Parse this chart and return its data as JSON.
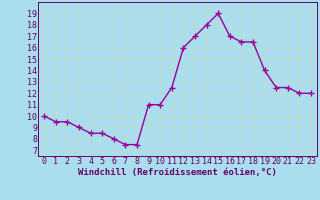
{
  "x": [
    0,
    1,
    2,
    3,
    4,
    5,
    6,
    7,
    8,
    9,
    10,
    11,
    12,
    13,
    14,
    15,
    16,
    17,
    18,
    19,
    20,
    21,
    22,
    23
  ],
  "y": [
    10.0,
    9.5,
    9.5,
    9.0,
    8.5,
    8.5,
    8.0,
    7.5,
    7.5,
    11.0,
    11.0,
    12.5,
    16.0,
    17.0,
    18.0,
    19.0,
    17.0,
    16.5,
    16.5,
    14.0,
    12.5,
    12.5,
    12.0,
    12.0
  ],
  "line_color": "#990099",
  "marker": "+",
  "marker_size": 4,
  "marker_lw": 1.0,
  "line_width": 1.0,
  "xlabel": "Windchill (Refroidissement éolien,°C)",
  "xlabel_fontsize": 6.5,
  "tick_fontsize": 6.0,
  "ylabel_ticks": [
    7,
    8,
    9,
    10,
    11,
    12,
    13,
    14,
    15,
    16,
    17,
    18,
    19
  ],
  "xtick_labels": [
    "0",
    "1",
    "2",
    "3",
    "4",
    "5",
    "6",
    "7",
    "8",
    "9",
    "10",
    "11",
    "12",
    "13",
    "14",
    "15",
    "16",
    "17",
    "18",
    "19",
    "20",
    "21",
    "22",
    "23"
  ],
  "ylim": [
    6.5,
    20.0
  ],
  "xlim": [
    -0.5,
    23.5
  ],
  "bg_color": "#aaddee",
  "grid_color": "#bbddcc",
  "spine_color": "#660066",
  "tick_color": "#660066",
  "label_color": "#660066"
}
